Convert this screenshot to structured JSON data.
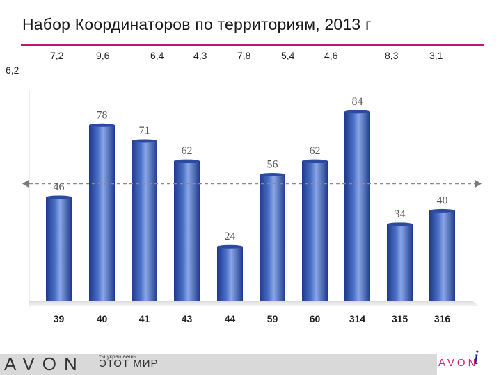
{
  "header": {
    "title": "Набор Координаторов по территориям, 2013 г"
  },
  "chart_data": {
    "type": "bar",
    "title": "Набор Координаторов по территориям, 2013 г",
    "categories": [
      "39",
      "40",
      "41",
      "43",
      "44",
      "59",
      "60",
      "314",
      "315",
      "316"
    ],
    "values": [
      46,
      78,
      71,
      62,
      24,
      56,
      62,
      84,
      34,
      40
    ],
    "top_values": [
      "6,2",
      "7,2",
      "9,6",
      "6,4",
      "4,3",
      "7,8",
      "5,4",
      "4,6",
      "8,3",
      "3,1"
    ],
    "reference_line": 52,
    "bar_color": "#4a6fc7",
    "ylim": [
      0,
      100
    ],
    "grid": false
  },
  "footer": {
    "brand": "AVON",
    "tagline_small": "ты украшаешь",
    "tagline_large": "ЭТОТ МИР",
    "badge_text": "AVON",
    "badge_letter": "i",
    "accent_color": "#c0166f"
  }
}
